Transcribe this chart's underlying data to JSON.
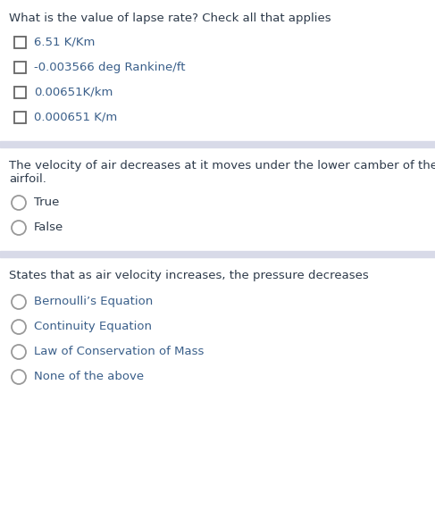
{
  "bg_color": "#ffffff",
  "divider_color": "#d8dae8",
  "q1_question": "What is the value of lapse rate? Check all that applies",
  "q1_question_color": "#2d3a4a",
  "q1_options": [
    "6.51 K/Km",
    "-0.003566 deg Rankine/ft",
    "0.00651K/km",
    "0.000651 K/m"
  ],
  "q1_option_color": "#3a5f8a",
  "q2_question": "The velocity of air decreases at it moves under the lower camber of the\nairfoil.",
  "q2_question_color": "#2d3a4a",
  "q2_options": [
    "True",
    "False"
  ],
  "q2_option_color": "#2d3a4a",
  "q3_question": "States that as air velocity increases, the pressure decreases",
  "q3_question_color": "#2d3a4a",
  "q3_options": [
    "Bernoulli’s Equation",
    "Continuity Equation",
    "Law of Conservation of Mass",
    "None of the above"
  ],
  "q3_option_color": "#3a5f8a",
  "font_size_q": 9.5,
  "font_size_opt": 9.5,
  "checkbox_color": "#666666",
  "radio_color": "#999999"
}
